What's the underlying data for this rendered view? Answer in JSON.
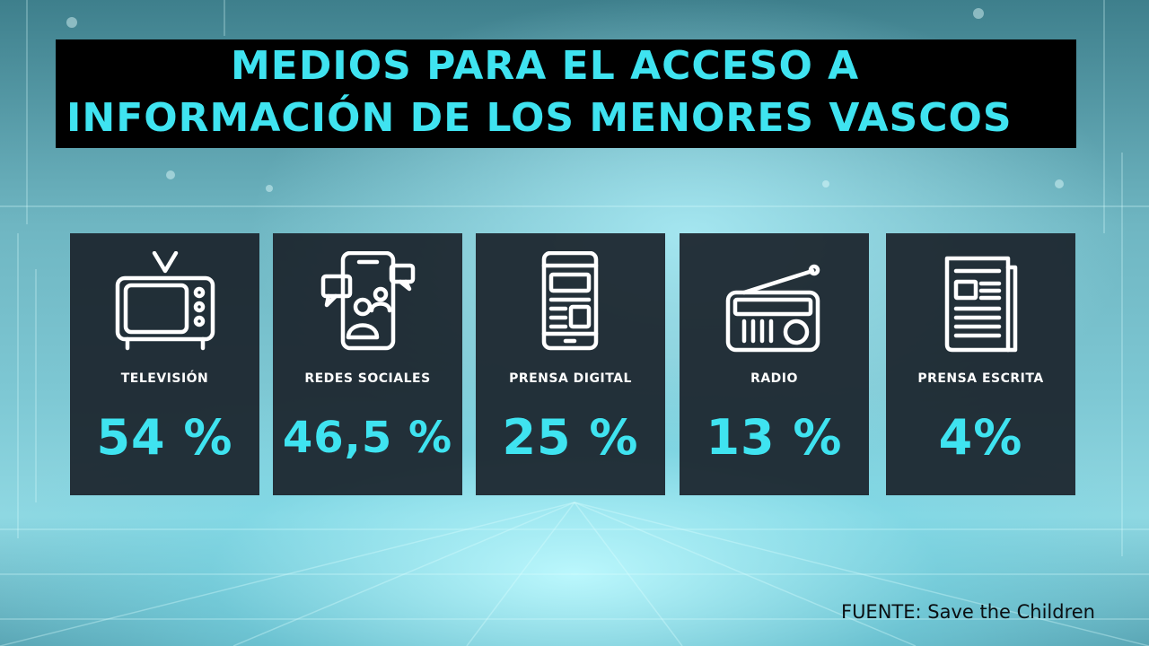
{
  "title": {
    "line1": "MEDIOS PARA EL ACCESO A",
    "line2": "INFORMACIÓN DE LOS MENORES VASCOS"
  },
  "cards": [
    {
      "label": "TELEVISIÓN",
      "value": "54 %",
      "icon": "television-icon"
    },
    {
      "label": "REDES SOCIALES",
      "value": "46,5 %",
      "icon": "smartphone-social-icon"
    },
    {
      "label": "PRENSA DIGITAL",
      "value": "25 %",
      "icon": "smartphone-news-icon"
    },
    {
      "label": "RADIO",
      "value": "13 %",
      "icon": "radio-icon"
    },
    {
      "label": "PRENSA ESCRITA",
      "value": "4%",
      "icon": "newspaper-icon"
    }
  ],
  "source": "FUENTE: Save the Children",
  "colors": {
    "accent": "#3fe3f0",
    "title_bg": "#000000",
    "card_bg": "#1b242c",
    "label": "#ffffff",
    "source": "#0b0f12"
  }
}
